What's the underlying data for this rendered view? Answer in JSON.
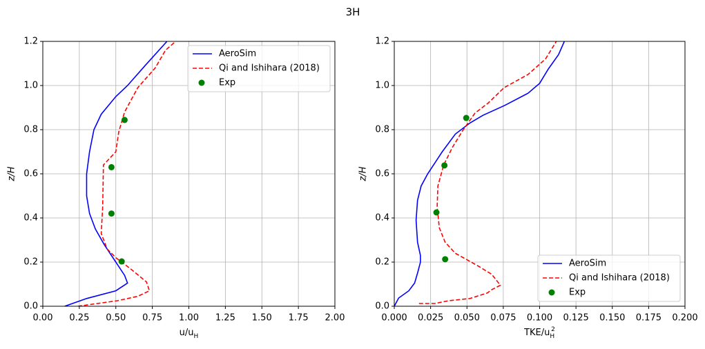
{
  "title": "3H",
  "chart_data": [
    {
      "type": "line",
      "xlabel": {
        "main": "u/u",
        "sub": "H"
      },
      "ylabel": "z/H",
      "xlim": [
        0,
        2.0
      ],
      "ylim": [
        0,
        1.2
      ],
      "xticks": [
        {
          "value": 0,
          "label": "0.00"
        },
        0.25,
        {
          "value": 0.5,
          "label": "0.50"
        },
        0.75,
        {
          "value": 1.0,
          "label": "1.00"
        },
        1.25,
        {
          "value": 1.5,
          "label": "1.50"
        },
        1.75,
        {
          "value": 2.0,
          "label": "2.00"
        }
      ],
      "yticks": [
        {
          "value": 0,
          "label": "0.0"
        },
        0.2,
        0.4,
        0.6,
        0.8,
        {
          "value": 1.0,
          "label": "1.0"
        },
        1.2
      ],
      "grid": true,
      "legend": "upper right",
      "series": [
        {
          "name": "AeroSim",
          "color": "#0000ff",
          "style": "solid",
          "x": [
            0.15,
            0.3,
            0.5,
            0.58,
            0.56,
            0.5,
            0.42,
            0.36,
            0.32,
            0.3,
            0.3,
            0.32,
            0.35,
            0.4,
            0.5,
            0.58,
            0.7,
            0.85
          ],
          "y": [
            0,
            0.035,
            0.07,
            0.105,
            0.14,
            0.2,
            0.28,
            0.35,
            0.42,
            0.5,
            0.6,
            0.7,
            0.8,
            0.87,
            0.95,
            1.0,
            1.09,
            1.2
          ]
        },
        {
          "name": "Qi and Ishihara (2018)",
          "color": "#ff0000",
          "style": "dashed",
          "x": [
            0.24,
            0.51,
            0.65,
            0.73,
            0.71,
            0.6,
            0.5,
            0.44,
            0.4,
            0.41,
            0.415,
            0.5,
            0.52,
            0.56,
            0.65,
            0.77,
            0.84,
            0.91
          ],
          "y": [
            0,
            0.025,
            0.045,
            0.07,
            0.11,
            0.17,
            0.22,
            0.26,
            0.33,
            0.45,
            0.64,
            0.7,
            0.79,
            0.88,
            0.99,
            1.08,
            1.16,
            1.2
          ]
        },
        {
          "name": "Exp",
          "color": "#008000",
          "style": "marker",
          "x": [
            0.56,
            0.47,
            0.47,
            0.54
          ],
          "y": [
            0.844,
            0.63,
            0.42,
            0.203
          ]
        }
      ]
    },
    {
      "type": "line",
      "xlabel": {
        "main": "TKE/u",
        "sub": "H",
        "sup": "2"
      },
      "ylabel": "z/H",
      "xlim": [
        0,
        0.2
      ],
      "ylim": [
        0,
        1.2
      ],
      "xticks": [
        {
          "value": 0,
          "label": "0.000"
        },
        0.025,
        {
          "value": 0.05,
          "label": "0.050"
        },
        0.075,
        {
          "value": 0.1,
          "label": "0.100"
        },
        0.125,
        {
          "value": 0.15,
          "label": "0.150"
        },
        0.175,
        {
          "value": 0.2,
          "label": "0.200"
        }
      ],
      "yticks": [
        {
          "value": 0,
          "label": "0.0"
        },
        0.2,
        0.4,
        0.6,
        0.8,
        {
          "value": 1.0,
          "label": "1.0"
        },
        1.2
      ],
      "grid": true,
      "legend": "lower right",
      "series": [
        {
          "name": "AeroSim",
          "color": "#0000ff",
          "style": "solid",
          "x": [
            0,
            0.003,
            0.01,
            0.014,
            0.016,
            0.018,
            0.018,
            0.016,
            0.015,
            0.016,
            0.0185,
            0.023,
            0.033,
            0.042,
            0.052,
            0.061,
            0.076,
            0.092,
            0.1,
            0.106,
            0.113,
            0.117
          ],
          "y": [
            0,
            0.037,
            0.07,
            0.105,
            0.15,
            0.2,
            0.23,
            0.29,
            0.39,
            0.48,
            0.545,
            0.6,
            0.7,
            0.78,
            0.83,
            0.865,
            0.91,
            0.965,
            1.01,
            1.075,
            1.14,
            1.2
          ]
        },
        {
          "name": "Qi and Ishihara (2018)",
          "color": "#ff0000",
          "style": "dashed",
          "x": [
            0.017,
            0.028,
            0.0375,
            0.052,
            0.064,
            0.067,
            0.073,
            0.067,
            0.057,
            0.042,
            0.035,
            0.031,
            0.0295,
            0.03,
            0.034,
            0.04,
            0.047,
            0.0555,
            0.0645,
            0.0755,
            0.092,
            0.104,
            0.1115
          ],
          "y": [
            0.0125,
            0.0125,
            0.025,
            0.035,
            0.06,
            0.075,
            0.095,
            0.145,
            0.185,
            0.24,
            0.29,
            0.355,
            0.45,
            0.545,
            0.64,
            0.72,
            0.795,
            0.875,
            0.92,
            0.99,
            1.05,
            1.12,
            1.2
          ]
        },
        {
          "name": "Exp",
          "color": "#008000",
          "style": "marker",
          "x": [
            0.0495,
            0.0345,
            0.029,
            0.035
          ],
          "y": [
            0.853,
            0.638,
            0.425,
            0.213
          ]
        }
      ]
    }
  ]
}
